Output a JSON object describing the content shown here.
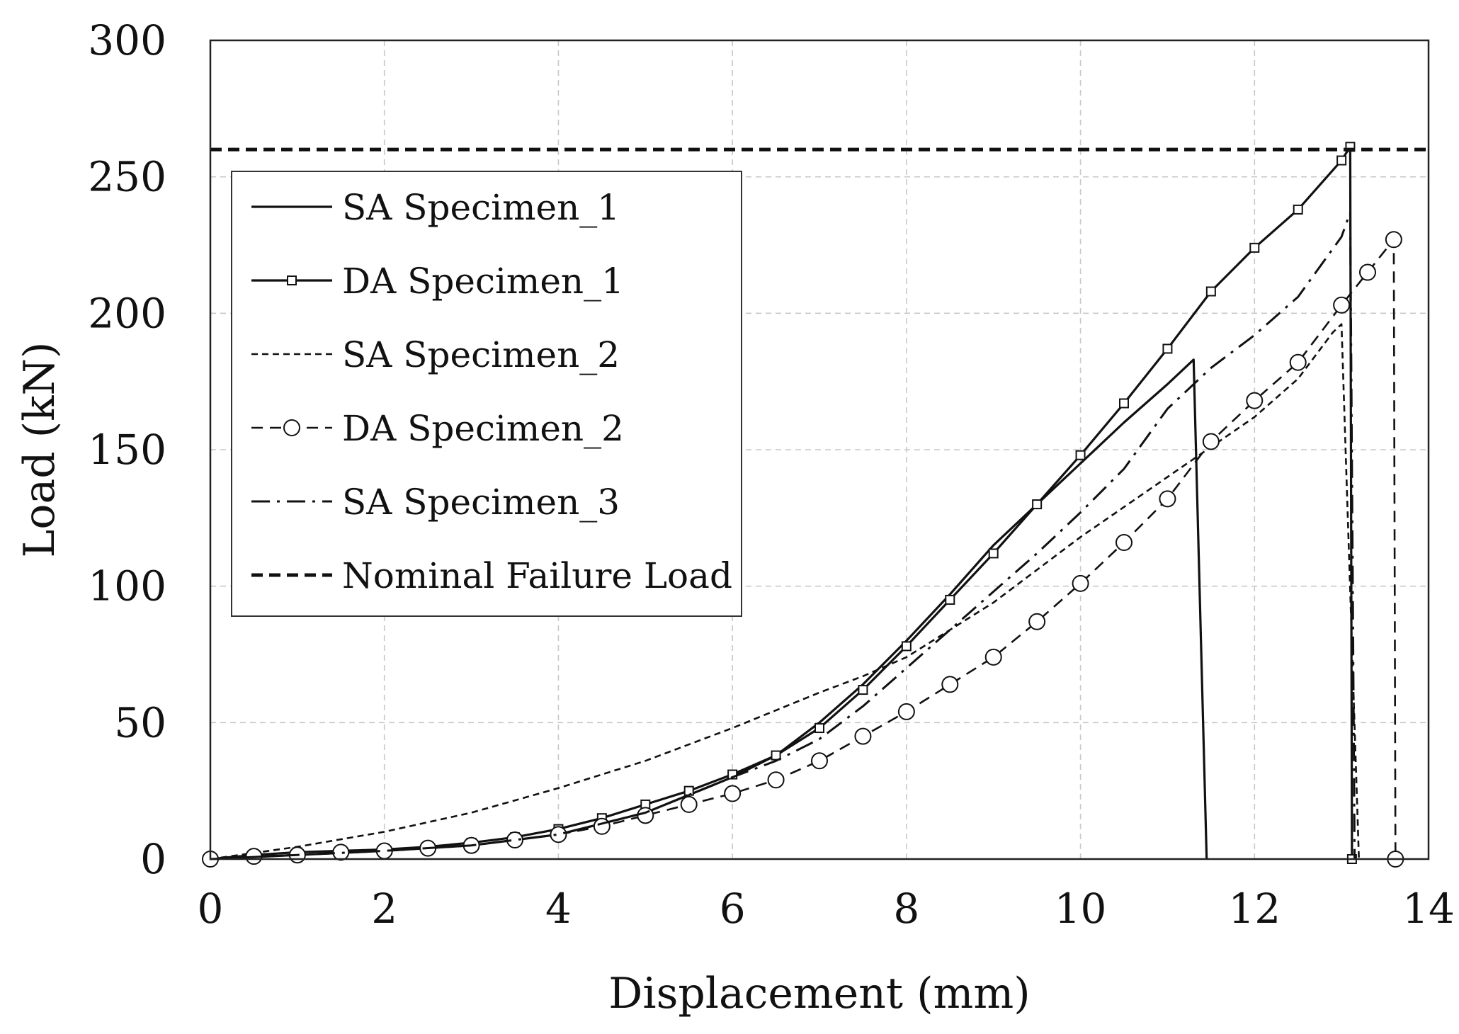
{
  "chart_data": {
    "type": "line",
    "title": "",
    "xlabel": "Displacement (mm)",
    "ylabel": "Load (kN)",
    "xlim": [
      0,
      14
    ],
    "ylim": [
      0,
      300
    ],
    "x_ticks": [
      0,
      2,
      4,
      6,
      8,
      10,
      12,
      14
    ],
    "y_ticks": [
      0,
      50,
      100,
      150,
      200,
      250,
      300
    ],
    "x_tick_labels": [
      "0",
      "2",
      "4",
      "6",
      "8",
      "10",
      "12",
      "14"
    ],
    "y_tick_labels": [
      "0",
      "50",
      "100",
      "150",
      "200",
      "250",
      "300"
    ],
    "grid": true,
    "legend_position": "upper-left",
    "series": [
      {
        "name": "SA Specimen_1",
        "style": "solid",
        "marker": "none",
        "x": [
          0,
          1,
          2,
          3,
          4,
          5,
          6,
          6.5,
          7,
          7.5,
          8,
          8.5,
          9,
          9.5,
          10,
          10.5,
          11,
          11.3,
          11.45
        ],
        "y": [
          0,
          1.5,
          3,
          5,
          9,
          17,
          30,
          38,
          50,
          64,
          80,
          97,
          115,
          130,
          145,
          160,
          174,
          183,
          0
        ]
      },
      {
        "name": "DA Specimen_1",
        "style": "solid",
        "marker": "square",
        "x": [
          0,
          0.5,
          1,
          1.5,
          2,
          2.5,
          3,
          3.5,
          4,
          4.5,
          5,
          5.5,
          6,
          6.5,
          7,
          7.5,
          8,
          8.5,
          9,
          9.5,
          10,
          10.5,
          11,
          11.5,
          12,
          12.5,
          13,
          13.1,
          13.12
        ],
        "y": [
          0,
          1.5,
          2.5,
          3,
          3.5,
          4.5,
          6,
          8,
          11,
          15,
          20,
          25,
          31,
          38,
          48,
          62,
          78,
          95,
          112,
          130,
          148,
          167,
          187,
          208,
          224,
          238,
          256,
          261,
          0
        ]
      },
      {
        "name": "SA Specimen_2",
        "style": "dotted",
        "marker": "none",
        "x": [
          0,
          1,
          2,
          3,
          4,
          5,
          6,
          7,
          7.5,
          8,
          9,
          10,
          11,
          12,
          12.5,
          12.9,
          13.0,
          13.2
        ],
        "y": [
          0,
          4.5,
          10,
          17,
          26,
          36,
          48,
          61,
          67,
          74,
          94,
          118,
          140,
          162,
          176,
          193,
          196,
          0
        ]
      },
      {
        "name": "DA Specimen_2",
        "style": "dashed",
        "marker": "circle",
        "x": [
          0,
          0.5,
          1,
          1.5,
          2,
          2.5,
          3,
          3.5,
          4,
          4.5,
          5,
          5.5,
          6,
          6.5,
          7,
          7.5,
          8,
          8.5,
          9,
          9.5,
          10,
          10.5,
          11,
          11.5,
          12,
          12.5,
          13,
          13.3,
          13.6,
          13.62
        ],
        "y": [
          0,
          1,
          1.5,
          2.5,
          3,
          4,
          5,
          7,
          9,
          12,
          16,
          20,
          24,
          29,
          36,
          45,
          54,
          64,
          74,
          87,
          101,
          116,
          132,
          153,
          168,
          182,
          203,
          215,
          227,
          0
        ]
      },
      {
        "name": "SA Specimen_3",
        "style": "dash-dot",
        "marker": "none",
        "x": [
          0,
          1,
          2,
          3,
          4,
          5,
          6,
          6.5,
          7,
          7.5,
          8,
          8.5,
          9,
          9.5,
          10,
          10.5,
          11,
          11.5,
          12,
          12.5,
          13,
          13.1,
          13.15
        ],
        "y": [
          0,
          1.5,
          3,
          5,
          9,
          17,
          30,
          36,
          44,
          56,
          70,
          84,
          98,
          112,
          127,
          143,
          165,
          180,
          192,
          206,
          228,
          237,
          0
        ]
      },
      {
        "name": "Nominal Failure Load",
        "style": "bold-dashed",
        "marker": "none",
        "x": [
          0,
          14
        ],
        "y": [
          260,
          260
        ]
      }
    ]
  }
}
